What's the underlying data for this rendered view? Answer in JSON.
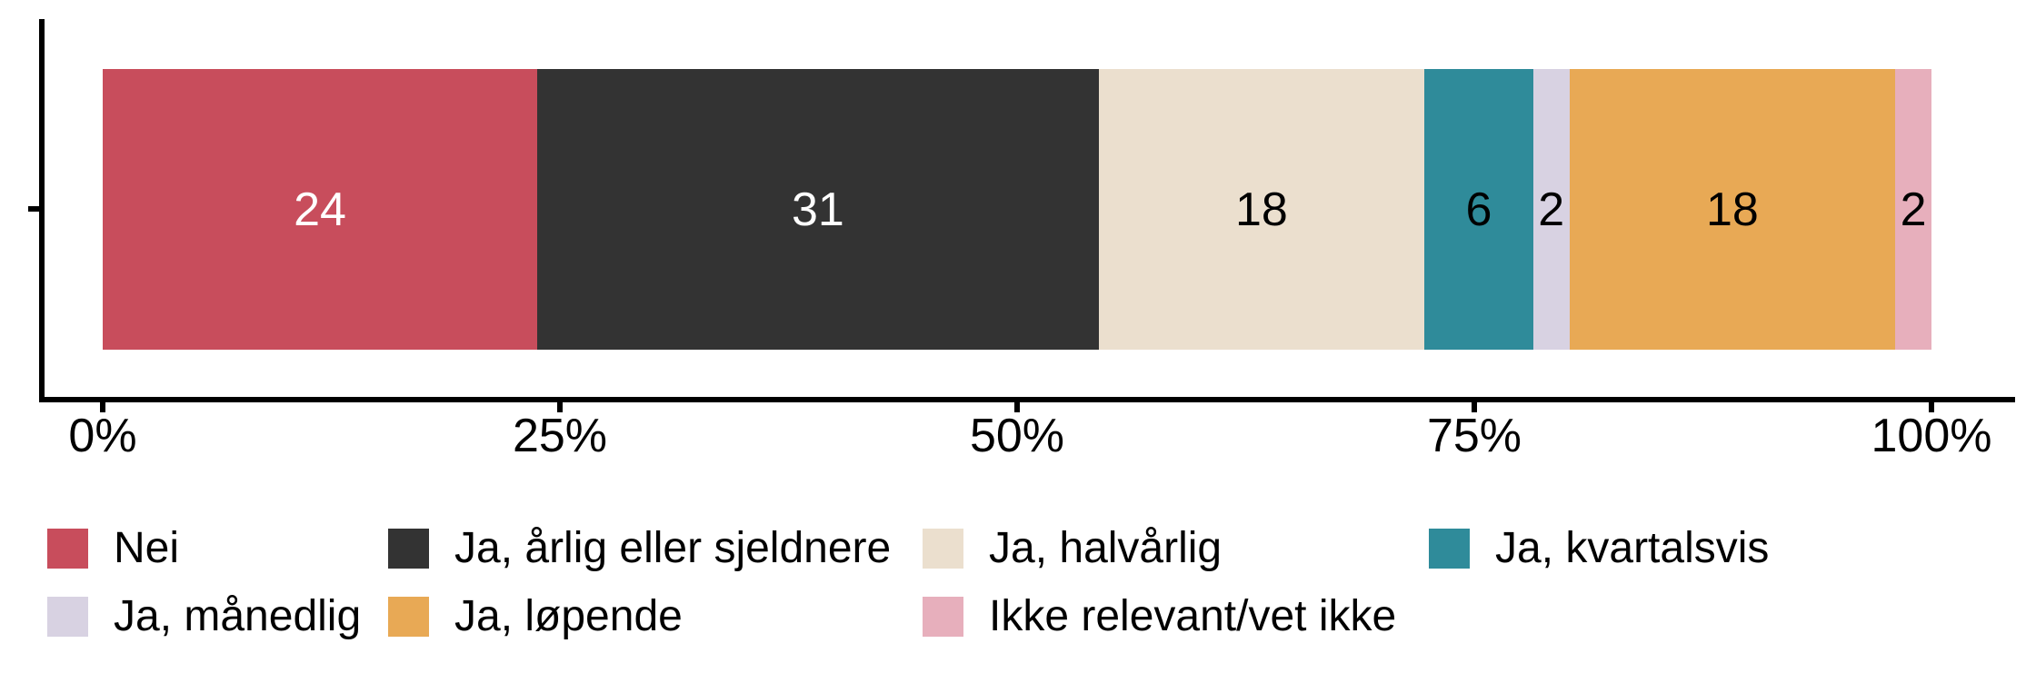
{
  "chart_data": {
    "type": "bar",
    "orientation": "horizontal",
    "stacking": "stacked-percent",
    "title": "",
    "xlabel": "",
    "ylabel": "",
    "x_axis": {
      "tick_labels": [
        "0%",
        "25%",
        "50%",
        "75%",
        "100%"
      ],
      "range_percent": [
        0,
        100
      ]
    },
    "series": [
      {
        "name": "Nei",
        "value": 24,
        "color": "#C84D5C",
        "label": "24",
        "label_color": "#FFFFFF"
      },
      {
        "name": "Ja, årlig eller sjeldnere",
        "value": 31,
        "color": "#333333",
        "label": "31",
        "label_color": "#FFFFFF"
      },
      {
        "name": "Ja, halvårlig",
        "value": 18,
        "color": "#EBDFCE",
        "label": "18",
        "label_color": "#000000"
      },
      {
        "name": "Ja, kvartalsvis",
        "value": 6,
        "color": "#2F8B9A",
        "label": "6",
        "label_color": "#000000"
      },
      {
        "name": "Ja, månedlig",
        "value": 2,
        "color": "#D8D2E2",
        "label": "2",
        "label_color": "#000000"
      },
      {
        "name": "Ja, løpende",
        "value": 18,
        "color": "#E8A955",
        "label": "18",
        "label_color": "#000000"
      },
      {
        "name": "Ikke relevant/vet ikke",
        "value": 2,
        "color": "#E7AFBC",
        "label": "2",
        "label_color": "#000000"
      }
    ],
    "legend_position": "bottom",
    "legend_rows": [
      [
        "Nei",
        "Ja, årlig eller sjeldnere",
        "Ja, halvårlig",
        "Ja, kvartalsvis"
      ],
      [
        "Ja, månedlig",
        "Ja, løpende",
        "Ikke relevant/vet ikke"
      ]
    ]
  }
}
